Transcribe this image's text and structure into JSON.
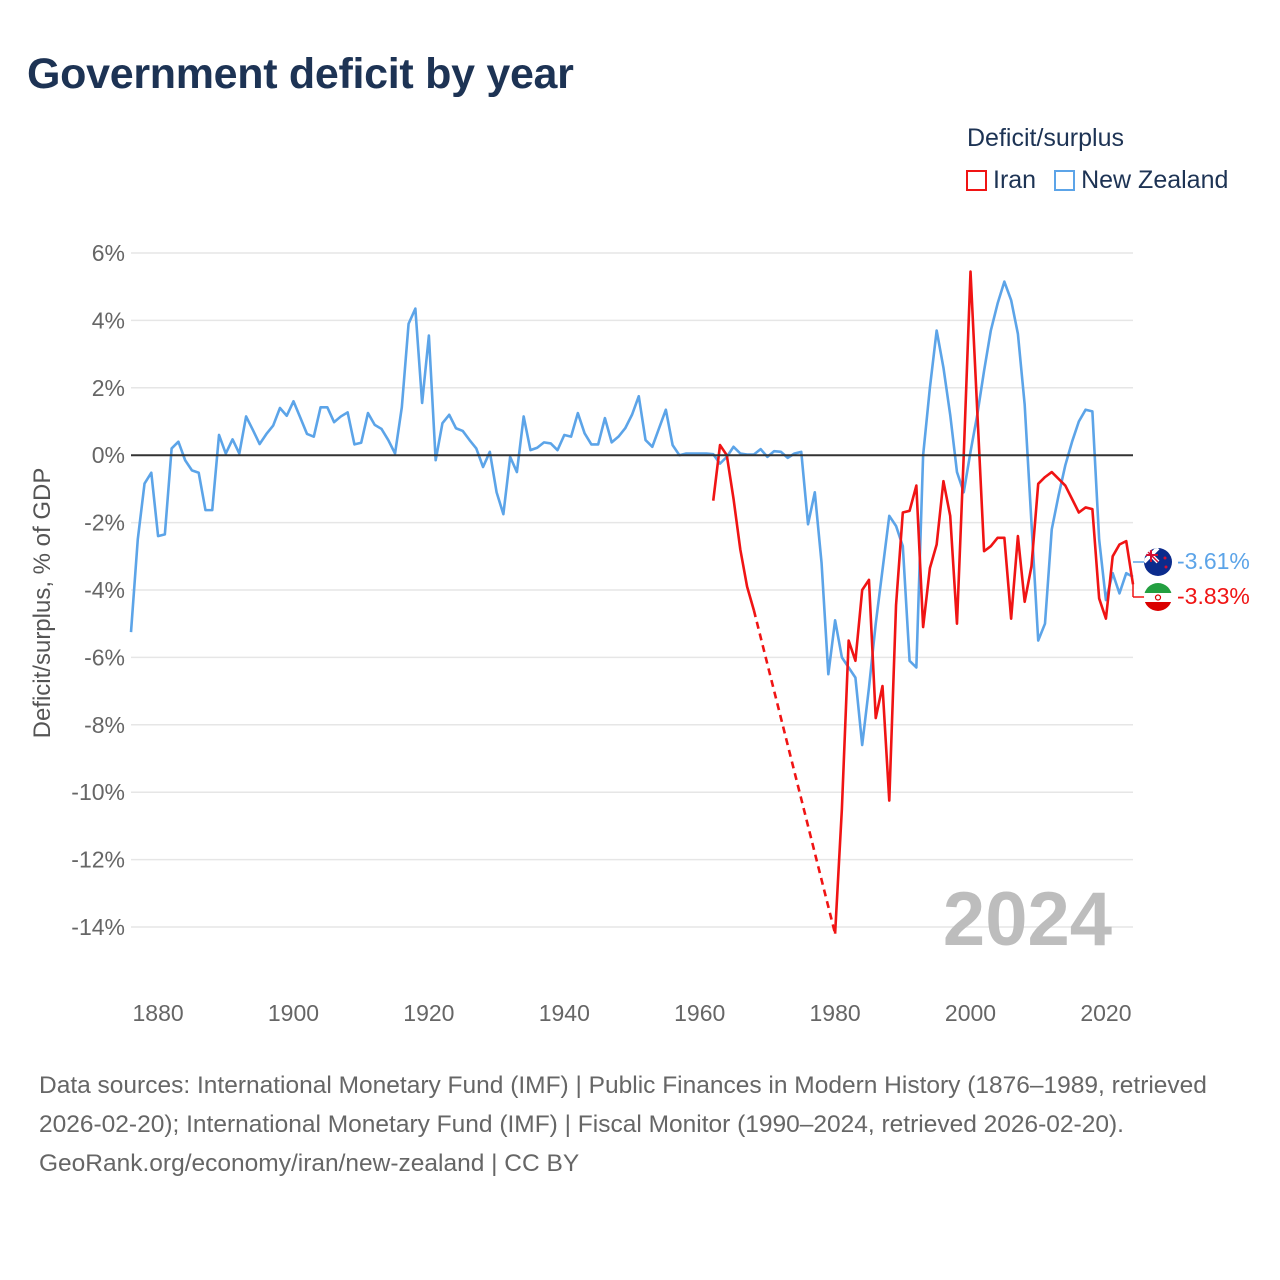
{
  "title": "Government deficit by year",
  "legend": {
    "title": "Deficit/surplus",
    "items": [
      {
        "label": "Iran",
        "color": "#f01414"
      },
      {
        "label": "New Zealand",
        "color": "#5ca4e8"
      }
    ]
  },
  "year_label": "2024",
  "end_labels": {
    "new_zealand": "-3.61%",
    "iran": "-3.83%"
  },
  "footer": {
    "sources": "Data sources: International Monetary Fund (IMF) | Public Finances in Modern History (1876–1989, retrieved 2026-02-20); International Monetary Fund (IMF) | Fiscal Monitor (1990–2024, retrieved 2026-02-20).",
    "credit": "GeoRank.org/economy/iran/new-zealand | CC BY"
  },
  "chart_data": {
    "type": "line",
    "title": "Government deficit by year",
    "xlabel": "",
    "ylabel": "Deficit/surplus, % of GDP",
    "xlim": [
      1876,
      2024
    ],
    "ylim": [
      -14,
      6
    ],
    "x_ticks": [
      1880,
      1900,
      1920,
      1940,
      1960,
      1980,
      2000,
      2020
    ],
    "x_tick_labels": [
      "1880",
      "1900",
      "1920",
      "1940",
      "1960",
      "1980",
      "2000",
      "2020"
    ],
    "y_ticks": [
      6,
      4,
      2,
      0,
      -2,
      -4,
      -6,
      -8,
      -10,
      -12,
      -14
    ],
    "y_tick_labels": [
      "6%",
      "4%",
      "2%",
      "0%",
      "-2%",
      "-4%",
      "-6%",
      "-8%",
      "-10%",
      "-12%",
      "-14%"
    ],
    "grid": true,
    "legend_position": "top-right",
    "series": [
      {
        "name": "New Zealand",
        "color": "#5ca4e8",
        "start_year": 1876,
        "values": [
          -5.25,
          -2.5,
          -0.84,
          -0.52,
          -2.4,
          -2.35,
          0.2,
          0.4,
          -0.15,
          -0.45,
          -0.52,
          -1.63,
          -1.63,
          0.6,
          0.05,
          0.47,
          0.05,
          1.15,
          0.75,
          0.33,
          0.63,
          0.88,
          1.4,
          1.17,
          1.6,
          1.12,
          0.63,
          0.55,
          1.42,
          1.42,
          0.98,
          1.15,
          1.27,
          0.32,
          0.37,
          1.25,
          0.9,
          0.78,
          0.45,
          0.05,
          1.42,
          3.9,
          4.35,
          1.55,
          3.55,
          -0.15,
          0.95,
          1.2,
          0.8,
          0.72,
          0.45,
          0.2,
          -0.35,
          0.1,
          -1.1,
          -1.75,
          -0.05,
          -0.5,
          1.15,
          0.15,
          0.22,
          0.38,
          0.35,
          0.15,
          0.6,
          0.55,
          1.25,
          0.65,
          0.32,
          0.32,
          1.1,
          0.38,
          0.55,
          0.8,
          1.2,
          1.75,
          0.45,
          0.25,
          0.8,
          1.35,
          0.3,
          0.0,
          0.05,
          0.05,
          0.05,
          0.05,
          0.03,
          -0.25,
          -0.05,
          0.25,
          0.05,
          0.02,
          0.02,
          0.18,
          -0.05,
          0.12,
          0.1,
          -0.08,
          0.05,
          0.1,
          -2.05,
          -1.1,
          -3.2,
          -6.5,
          -4.9,
          -6.0,
          -6.3,
          -6.6,
          -8.6,
          -6.9,
          -5.0,
          -3.4,
          -1.8,
          -2.1,
          -2.7,
          -6.1,
          -6.3,
          0.0,
          2.0,
          3.7,
          2.6,
          1.2,
          -0.5,
          -1.1,
          0.1,
          1.2,
          2.5,
          3.7,
          4.5,
          5.15,
          4.6,
          3.6,
          1.5,
          -2.0,
          -5.5,
          -5.0,
          -2.2,
          -1.2,
          -0.3,
          0.4,
          1.0,
          1.35,
          1.3,
          -2.5,
          -4.3,
          -3.5,
          -4.1,
          -3.5,
          -3.61
        ]
      },
      {
        "name": "Iran",
        "color": "#f01414",
        "start_year": 1962,
        "values": [
          -1.35,
          0.3,
          0.0,
          -1.3,
          -2.8,
          -3.9,
          -4.6,
          null,
          null,
          null,
          null,
          null,
          null,
          null,
          null,
          null,
          null,
          null,
          -14.2,
          -10.5,
          -5.5,
          -6.1,
          -4.0,
          -3.7,
          -7.8,
          -6.85,
          -10.25,
          -4.45,
          -1.7,
          -1.65,
          -0.9,
          -5.1,
          -3.35,
          -2.65,
          -0.77,
          -1.8,
          -5.0,
          0.0,
          5.45,
          1.3,
          -2.85,
          -2.7,
          -2.45,
          -2.45,
          -4.85,
          -2.4,
          -4.35,
          -3.3,
          -0.85,
          -0.65,
          -0.5,
          -0.7,
          -0.9,
          -1.3,
          -1.7,
          -1.55,
          -1.6,
          -4.25,
          -4.85,
          -3.0,
          -2.65,
          -2.55,
          -3.83
        ]
      }
    ]
  }
}
